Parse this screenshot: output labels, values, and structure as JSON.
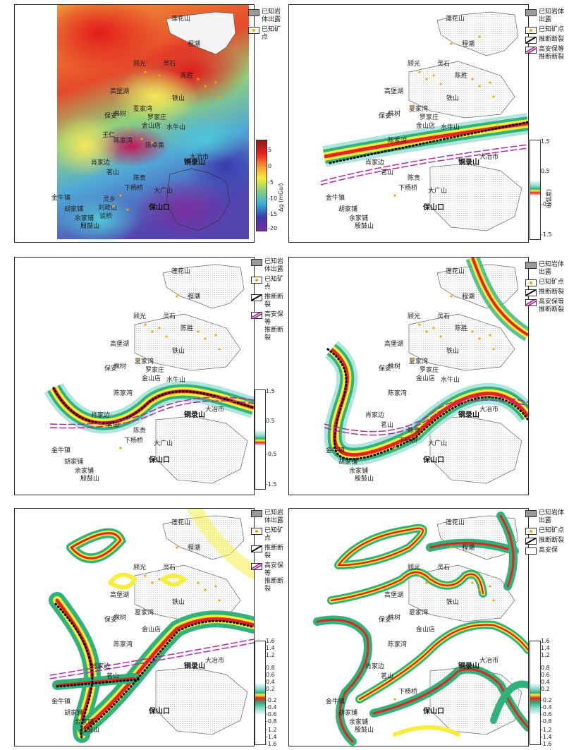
{
  "places": {
    "lianhuashan": "莲花山",
    "chengchao": "程潮",
    "guguang": "顾光",
    "lingshi": "灵石",
    "chensheng": "陈胜",
    "gaobuhu": "高堡湖",
    "tieshan": "铁山",
    "zhushu": "株树",
    "xiajiawan": "夏家湾",
    "baoan": "保安",
    "luojiazhuang": "罗家庄",
    "jinshandian": "金山店",
    "shuiniushan": "水牛山",
    "wangren": "王仁",
    "zhangfujian": "张福尖",
    "dongqiushan": "东秋山",
    "chenjiawan": "陈家湾",
    "chenzhuohuang": "陈卓黄",
    "xiaojiabian": "肖家边",
    "daye": "大冶市",
    "tonglushan": "铜录山",
    "mingshan": "茗山",
    "chengui": "陈贵",
    "xiayangqiao": "下杨桥",
    "dashan": "大广山",
    "lingxiang": "灵乡",
    "lianshan": "莲山",
    "jinniuzhen": "金牛镇",
    "liuzhengshan": "刘政山",
    "pingshan": "屏山",
    "hujiapu": "胡家铺",
    "tanqiao": "谈桥",
    "yujiapu": "余家铺",
    "liaoguoshan": "殷鼓山",
    "baoshankou": "保山口",
    "chengxiang": "城乡"
  },
  "legend": {
    "rock": "已知岩体出露",
    "ore": "已知矿点",
    "fault": "推断断裂",
    "fault2_line1": "高安保等",
    "fault2_line2": "推断断裂",
    "rock_f": "已知岩体出露",
    "ore_f": "已知矿点",
    "fault_f": "推断断裂",
    "blank_f": "高安保"
  },
  "colorbars": {
    "a": {
      "label": "Δg (mGal)",
      "ticks": [
        "5",
        "0",
        "-5",
        "-10",
        "-15",
        "-20"
      ]
    },
    "b": {
      "label": "θ(弧度)",
      "ticks": [
        "1.5",
        "0.5",
        "-0.5",
        "-1.5"
      ]
    },
    "c": {
      "ticks": [
        "1.5",
        "0.5",
        "-0.5",
        "-1.5"
      ]
    },
    "e": {
      "ticks": [
        "1.6",
        "1.4",
        "1.2",
        "0.8",
        "0.6",
        "0.4",
        "0.2",
        "-0.2",
        "-0.4",
        "-0.6",
        "-0.8",
        "-1.2",
        "-1.4",
        "-1.6"
      ]
    },
    "f": {
      "ticks": [
        "1.6",
        "1.4",
        "1.2",
        "0.8",
        "0.6",
        "0.4",
        "0.2",
        "-0.2",
        "-0.4",
        "-0.6",
        "-0.8",
        "-1.2",
        "-1.4",
        "-1.6"
      ]
    }
  },
  "colors": {
    "ore": "#f5a400",
    "fault_trace": "#000000",
    "fault_mag": "#b02aa0",
    "rock": "#9a9a9a",
    "band_red": "#e8231f",
    "band_yellow": "#f6ee3a",
    "band_green": "#2fb37a",
    "band_cyan": "#8fd9d2"
  }
}
